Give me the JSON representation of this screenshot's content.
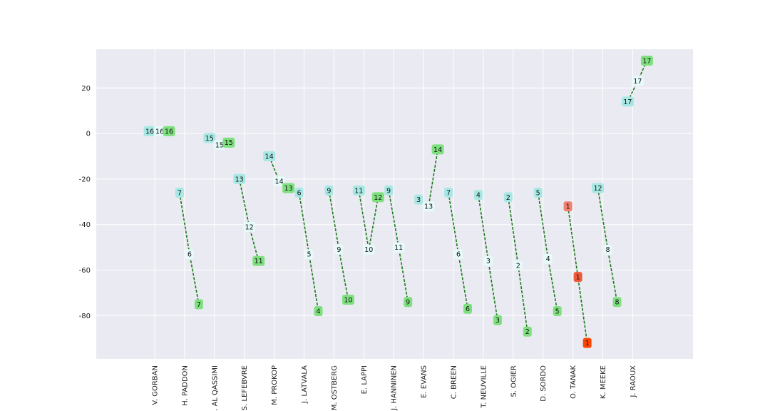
{
  "chart_data": {
    "type": "scatter",
    "title": "",
    "xlabel": "",
    "ylabel": "",
    "ylim": [
      -99,
      37
    ],
    "y_ticks": [
      20,
      0,
      -20,
      -40,
      -60,
      -80
    ],
    "grid": true,
    "legend": "none",
    "colors": {
      "background": "#eaeaf2",
      "grid": "#ffffff",
      "line": "#1a7a1a",
      "start_box": "#a8e8e4",
      "mid_box": "#e6fafa",
      "end_box": "#7ee07e",
      "tanak_start": "#f08070",
      "tanak_mid": "#ee5a3a",
      "tanak_end": "#ff4500"
    },
    "categories": [
      "V. GORBAN",
      "H. PADDON",
      "S. AL QASSIMI",
      "S. LEFEBVRE",
      "M. PROKOP",
      "J. LATVALA",
      "M. OSTBERG",
      "E. LAPPI",
      "J. HANNINEN",
      "E. EVANS",
      "C. BREEN",
      "T. NEUVILLE",
      "S. OGIER",
      "D. SORDO",
      "O. TANAK",
      "K. MEEKE",
      "J. RAOUX"
    ],
    "drivers": [
      {
        "name": "V. GORBAN",
        "points": [
          {
            "y": 1,
            "label": "16"
          },
          {
            "y": 1,
            "label": "16"
          },
          {
            "y": 1,
            "label": "16"
          }
        ]
      },
      {
        "name": "H. PADDON",
        "points": [
          {
            "y": -26,
            "label": "7"
          },
          {
            "y": -53,
            "label": "6"
          },
          {
            "y": -75,
            "label": "7"
          }
        ]
      },
      {
        "name": "S. AL QASSIMI",
        "points": [
          {
            "y": -2,
            "label": "15"
          },
          {
            "y": -5,
            "label": "15"
          },
          {
            "y": -4,
            "label": "15"
          }
        ]
      },
      {
        "name": "S. LEFEBVRE",
        "points": [
          {
            "y": -20,
            "label": "13"
          },
          {
            "y": -41,
            "label": "12"
          },
          {
            "y": -56,
            "label": "11"
          }
        ]
      },
      {
        "name": "M. PROKOP",
        "points": [
          {
            "y": -10,
            "label": "14"
          },
          {
            "y": -21,
            "label": "14"
          },
          {
            "y": -24,
            "label": "13"
          }
        ]
      },
      {
        "name": "J. LATVALA",
        "points": [
          {
            "y": -26,
            "label": "6"
          },
          {
            "y": -53,
            "label": "5"
          },
          {
            "y": -78,
            "label": "4"
          }
        ]
      },
      {
        "name": "M. OSTBERG",
        "points": [
          {
            "y": -25,
            "label": "9"
          },
          {
            "y": -51,
            "label": "9"
          },
          {
            "y": -73,
            "label": "10"
          }
        ]
      },
      {
        "name": "E. LAPPI",
        "points": [
          {
            "y": -25,
            "label": "11"
          },
          {
            "y": -51,
            "label": "10"
          },
          {
            "y": -28,
            "label": "12"
          }
        ]
      },
      {
        "name": "J. HANNINEN",
        "points": [
          {
            "y": -25,
            "label": "9"
          },
          {
            "y": -50,
            "label": "11"
          },
          {
            "y": -74,
            "label": "9"
          }
        ]
      },
      {
        "name": "E. EVANS",
        "points": [
          {
            "y": -29,
            "label": "3"
          },
          {
            "y": -32,
            "label": "13"
          },
          {
            "y": -7,
            "label": "14"
          }
        ]
      },
      {
        "name": "C. BREEN",
        "points": [
          {
            "y": -26,
            "label": "7"
          },
          {
            "y": -53,
            "label": "6"
          },
          {
            "y": -77,
            "label": "6"
          }
        ]
      },
      {
        "name": "T. NEUVILLE",
        "points": [
          {
            "y": -27,
            "label": "4"
          },
          {
            "y": -56,
            "label": "3"
          },
          {
            "y": -82,
            "label": "3"
          }
        ]
      },
      {
        "name": "S. OGIER",
        "points": [
          {
            "y": -28,
            "label": "2"
          },
          {
            "y": -58,
            "label": "2"
          },
          {
            "y": -87,
            "label": "2"
          }
        ]
      },
      {
        "name": "D. SORDO",
        "points": [
          {
            "y": -26,
            "label": "5"
          },
          {
            "y": -55,
            "label": "4"
          },
          {
            "y": -78,
            "label": "5"
          }
        ]
      },
      {
        "name": "O. TANAK",
        "points": [
          {
            "y": -32,
            "label": "1"
          },
          {
            "y": -63,
            "label": "1"
          },
          {
            "y": -92,
            "label": "1"
          }
        ]
      },
      {
        "name": "K. MEEKE",
        "points": [
          {
            "y": -24,
            "label": "12"
          },
          {
            "y": -51,
            "label": "8"
          },
          {
            "y": -74,
            "label": "8"
          }
        ]
      },
      {
        "name": "J. RAOUX",
        "points": [
          {
            "y": 14,
            "label": "17"
          },
          {
            "y": 23,
            "label": "17"
          },
          {
            "y": 32,
            "label": "17"
          }
        ]
      }
    ]
  }
}
